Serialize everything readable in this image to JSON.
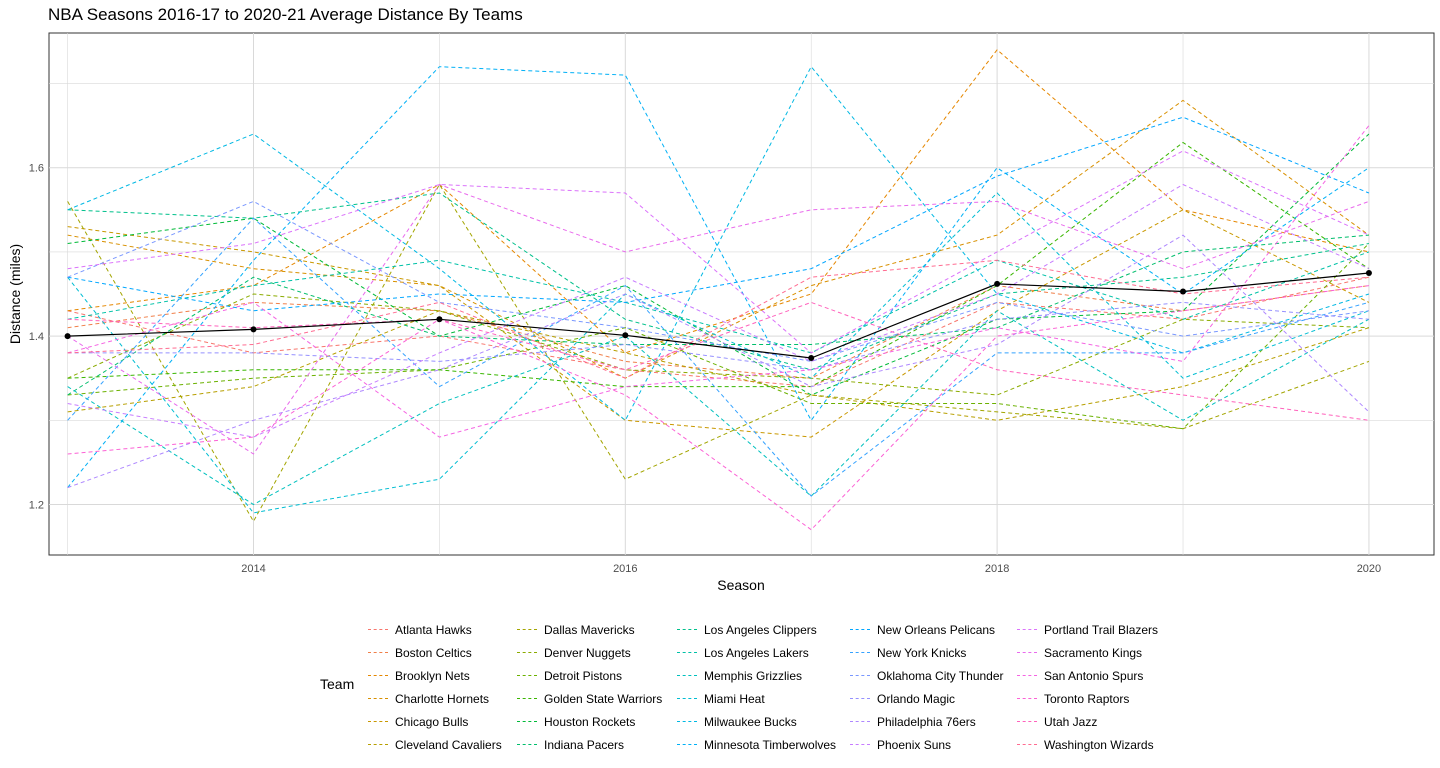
{
  "title": "NBA Seasons 2016-17 to 2020-21 Average Distance By Teams",
  "chart_data": {
    "type": "line",
    "title": "NBA Seasons 2016-17 to 2020-21 Average Distance By Teams",
    "xlabel": "Season",
    "ylabel": "Distance (miles)",
    "x": [
      2013,
      2014,
      2015,
      2016,
      2017,
      2018,
      2019,
      2020
    ],
    "xlim": [
      2012.9,
      2020.35
    ],
    "ylim": [
      1.14,
      1.76
    ],
    "x_ticks": [
      2014,
      2016,
      2018,
      2020
    ],
    "y_ticks": [
      1.2,
      1.4,
      1.6
    ],
    "grid": true,
    "legend_title": "Team",
    "legend_position": "bottom",
    "average": {
      "color": "#000000",
      "values": [
        1.4,
        1.408,
        1.42,
        1.401,
        1.374,
        1.462,
        1.453,
        1.475
      ]
    },
    "series": [
      {
        "name": "Atlanta Hawks",
        "color": "#F8766D",
        "values": [
          1.43,
          1.38,
          1.4,
          1.36,
          1.34,
          1.44,
          1.42,
          1.47
        ]
      },
      {
        "name": "Boston Celtics",
        "color": "#F07F49",
        "values": [
          1.41,
          1.44,
          1.43,
          1.37,
          1.35,
          1.46,
          1.43,
          1.46
        ]
      },
      {
        "name": "Brooklyn Nets",
        "color": "#E58700",
        "values": [
          1.43,
          1.46,
          1.58,
          1.38,
          1.45,
          1.74,
          1.55,
          1.5
        ]
      },
      {
        "name": "Charlotte Hornets",
        "color": "#D89000",
        "values": [
          1.52,
          1.48,
          1.46,
          1.35,
          1.46,
          1.52,
          1.68,
          1.52
        ]
      },
      {
        "name": "Chicago Bulls",
        "color": "#C99800",
        "values": [
          1.53,
          1.5,
          1.46,
          1.3,
          1.28,
          1.43,
          1.55,
          1.44
        ]
      },
      {
        "name": "Cleveland Cavaliers",
        "color": "#B79F00",
        "values": [
          1.31,
          1.34,
          1.43,
          1.38,
          1.33,
          1.3,
          1.34,
          1.41
        ]
      },
      {
        "name": "Dallas Mavericks",
        "color": "#A3A500",
        "values": [
          1.56,
          1.18,
          1.58,
          1.23,
          1.33,
          1.31,
          1.29,
          1.37
        ]
      },
      {
        "name": "Denver Nuggets",
        "color": "#8BAB00",
        "values": [
          1.35,
          1.45,
          1.43,
          1.36,
          1.35,
          1.33,
          1.42,
          1.41
        ]
      },
      {
        "name": "Detroit Pistons",
        "color": "#6BB100",
        "values": [
          1.33,
          1.35,
          1.36,
          1.41,
          1.32,
          1.32,
          1.29,
          1.51
        ]
      },
      {
        "name": "Golden State Warriors",
        "color": "#39B600",
        "values": [
          1.35,
          1.36,
          1.36,
          1.34,
          1.34,
          1.46,
          1.63,
          1.48
        ]
      },
      {
        "name": "Houston Rockets",
        "color": "#00BA38",
        "values": [
          1.51,
          1.54,
          1.4,
          1.46,
          1.33,
          1.42,
          1.43,
          1.64
        ]
      },
      {
        "name": "Indiana Pacers",
        "color": "#00BE6C",
        "values": [
          1.33,
          1.47,
          1.4,
          1.39,
          1.39,
          1.41,
          1.5,
          1.52
        ]
      },
      {
        "name": "Los Angeles Clippers",
        "color": "#00C08B",
        "values": [
          1.55,
          1.54,
          1.57,
          1.42,
          1.36,
          1.45,
          1.47,
          1.51
        ]
      },
      {
        "name": "Los Angeles Lakers",
        "color": "#00C1A7",
        "values": [
          1.42,
          1.46,
          1.49,
          1.44,
          1.38,
          1.49,
          1.42,
          1.5
        ]
      },
      {
        "name": "Memphis Grizzlies",
        "color": "#00C0BE",
        "values": [
          1.34,
          1.2,
          1.32,
          1.4,
          1.21,
          1.43,
          1.3,
          1.42
        ]
      },
      {
        "name": "Miami Heat",
        "color": "#00BDD2",
        "values": [
          1.47,
          1.19,
          1.23,
          1.45,
          1.35,
          1.57,
          1.35,
          1.43
        ]
      },
      {
        "name": "Milwaukee Bucks",
        "color": "#00B8E3",
        "values": [
          1.55,
          1.64,
          1.48,
          1.3,
          1.72,
          1.45,
          1.38,
          1.45
        ]
      },
      {
        "name": "Minnesota Timberwolves",
        "color": "#00B0F6",
        "values": [
          1.22,
          1.49,
          1.72,
          1.71,
          1.3,
          1.6,
          1.45,
          1.6
        ]
      },
      {
        "name": "New Orleans Pelicans",
        "color": "#00A6FF",
        "values": [
          1.47,
          1.43,
          1.45,
          1.44,
          1.48,
          1.59,
          1.66,
          1.57
        ]
      },
      {
        "name": "New York Knicks",
        "color": "#35A2FF",
        "values": [
          1.3,
          1.54,
          1.34,
          1.46,
          1.21,
          1.38,
          1.38,
          1.44
        ]
      },
      {
        "name": "Oklahoma City Thunder",
        "color": "#7997FF",
        "values": [
          1.47,
          1.56,
          1.44,
          1.41,
          1.37,
          1.44,
          1.4,
          1.43
        ]
      },
      {
        "name": "Orlando Magic",
        "color": "#9590FF",
        "values": [
          1.38,
          1.38,
          1.37,
          1.39,
          1.36,
          1.42,
          1.44,
          1.42
        ]
      },
      {
        "name": "Philadelphia 76ers",
        "color": "#AE87FF",
        "values": [
          1.22,
          1.3,
          1.36,
          1.45,
          1.34,
          1.39,
          1.52,
          1.31
        ]
      },
      {
        "name": "Phoenix Suns",
        "color": "#C77CFF",
        "values": [
          1.32,
          1.28,
          1.38,
          1.47,
          1.37,
          1.45,
          1.58,
          1.48
        ]
      },
      {
        "name": "Portland Trail Blazers",
        "color": "#DB72FB",
        "values": [
          1.48,
          1.51,
          1.58,
          1.57,
          1.38,
          1.5,
          1.62,
          1.52
        ]
      },
      {
        "name": "Sacramento Kings",
        "color": "#E96AED",
        "values": [
          1.4,
          1.26,
          1.58,
          1.5,
          1.55,
          1.56,
          1.48,
          1.56
        ]
      },
      {
        "name": "San Antonio Spurs",
        "color": "#F564E3",
        "values": [
          1.38,
          1.44,
          1.28,
          1.34,
          1.36,
          1.41,
          1.37,
          1.65
        ]
      },
      {
        "name": "Toronto Raptors",
        "color": "#FC61D5",
        "values": [
          1.26,
          1.28,
          1.42,
          1.33,
          1.17,
          1.4,
          1.43,
          1.46
        ]
      },
      {
        "name": "Utah Jazz",
        "color": "#FF62BC",
        "values": [
          1.42,
          1.41,
          1.42,
          1.36,
          1.44,
          1.36,
          1.33,
          1.3
        ]
      },
      {
        "name": "Washington Wizards",
        "color": "#FF6C91",
        "values": [
          1.38,
          1.39,
          1.44,
          1.35,
          1.47,
          1.49,
          1.45,
          1.47
        ]
      }
    ]
  }
}
